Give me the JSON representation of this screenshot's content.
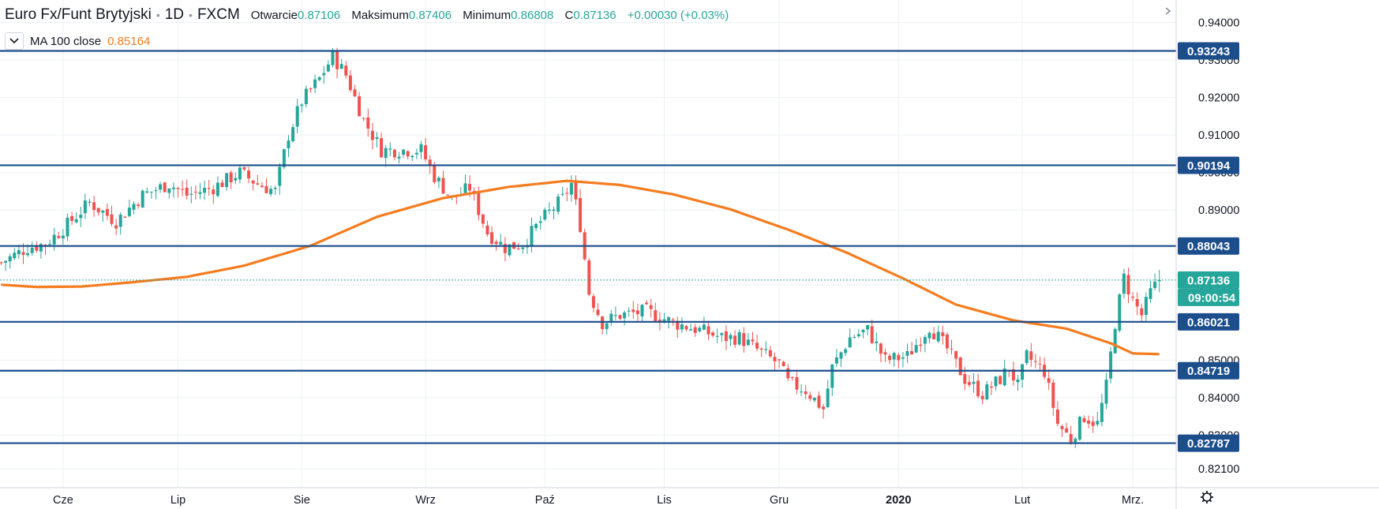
{
  "header": {
    "symbol": "Euro Fx/Funt Brytyjski",
    "interval": "1D",
    "exchange": "FXCM",
    "open_label": "Otwarcie",
    "open_value": "0.87106",
    "high_label": "Maksimum",
    "high_value": "0.87406",
    "low_label": "Minimum",
    "low_value": "0.86808",
    "close_label": "C",
    "close_value": "0.87136",
    "change": "+0.00030 (+0.03%)"
  },
  "indicator": {
    "label": "MA 100 close",
    "value": "0.85164"
  },
  "colors": {
    "up": "#26a69a",
    "down": "#ef5350",
    "ma": "#f57c1f",
    "level": "#1c4e8c",
    "grid": "#eef0f3",
    "axis_text": "#131722",
    "price_line": "#26a69a"
  },
  "chart_data": {
    "type": "candlestick",
    "title": "Euro Fx/Funt Brytyjski · 1D · FXCM",
    "y_axis": {
      "min": 0.816,
      "max": 0.946,
      "ticks": [
        "0.94000",
        "0.93000",
        "0.92000",
        "0.91000",
        "0.90000",
        "0.89000",
        "0.88000",
        "0.87000",
        "0.86000",
        "0.85000",
        "0.84000",
        "0.83000",
        "0.82100"
      ]
    },
    "x_axis": {
      "labels": [
        {
          "label": "Cze",
          "bar": 14
        },
        {
          "label": "Lip",
          "bar": 40
        },
        {
          "label": "Sie",
          "bar": 68
        },
        {
          "label": "Wrz",
          "bar": 96
        },
        {
          "label": "Paź",
          "bar": 123
        },
        {
          "label": "Lis",
          "bar": 150
        },
        {
          "label": "Gru",
          "bar": 176
        },
        {
          "label": "2020",
          "bar": 203
        },
        {
          "label": "Lut",
          "bar": 231
        },
        {
          "label": "Mrz.",
          "bar": 256
        }
      ]
    },
    "horizontal_levels": [
      "0.93243",
      "0.90194",
      "0.88043",
      "0.86021",
      "0.84719",
      "0.82787"
    ],
    "last_price": {
      "price": "0.87136",
      "countdown": "09:00:54"
    },
    "ma_anchors": [
      [
        0,
        0.8701
      ],
      [
        8,
        0.8695
      ],
      [
        18,
        0.8696
      ],
      [
        30,
        0.8708
      ],
      [
        42,
        0.8722
      ],
      [
        55,
        0.8752
      ],
      [
        70,
        0.8805
      ],
      [
        85,
        0.8882
      ],
      [
        100,
        0.8932
      ],
      [
        115,
        0.8962
      ],
      [
        128,
        0.8978
      ],
      [
        140,
        0.8967
      ],
      [
        152,
        0.8942
      ],
      [
        165,
        0.8902
      ],
      [
        178,
        0.8848
      ],
      [
        191,
        0.8788
      ],
      [
        204,
        0.8718
      ],
      [
        216,
        0.8648
      ],
      [
        229,
        0.8606
      ],
      [
        241,
        0.8584
      ],
      [
        251,
        0.8545
      ],
      [
        256,
        0.8518
      ],
      [
        262,
        0.8516
      ]
    ],
    "close_anchors": [
      [
        0,
        0.876
      ],
      [
        6,
        0.88
      ],
      [
        10,
        0.881
      ],
      [
        14,
        0.885
      ],
      [
        20,
        0.892
      ],
      [
        26,
        0.887
      ],
      [
        32,
        0.894
      ],
      [
        38,
        0.897
      ],
      [
        42,
        0.894
      ],
      [
        48,
        0.896
      ],
      [
        54,
        0.9
      ],
      [
        58,
        0.897
      ],
      [
        62,
        0.895
      ],
      [
        65,
        0.91
      ],
      [
        68,
        0.919
      ],
      [
        72,
        0.925
      ],
      [
        75,
        0.931
      ],
      [
        78,
        0.926
      ],
      [
        82,
        0.914
      ],
      [
        86,
        0.906
      ],
      [
        90,
        0.906
      ],
      [
        95,
        0.906
      ],
      [
        98,
        0.899
      ],
      [
        102,
        0.893
      ],
      [
        106,
        0.896
      ],
      [
        110,
        0.884
      ],
      [
        114,
        0.88
      ],
      [
        118,
        0.881
      ],
      [
        122,
        0.887
      ],
      [
        127,
        0.893
      ],
      [
        129,
        0.897
      ],
      [
        131,
        0.886
      ],
      [
        133,
        0.868
      ],
      [
        136,
        0.86
      ],
      [
        140,
        0.862
      ],
      [
        146,
        0.863
      ],
      [
        152,
        0.86
      ],
      [
        158,
        0.858
      ],
      [
        163,
        0.856
      ],
      [
        167,
        0.856
      ],
      [
        172,
        0.852
      ],
      [
        176,
        0.849
      ],
      [
        178,
        0.844
      ],
      [
        182,
        0.842
      ],
      [
        186,
        0.837
      ],
      [
        188,
        0.848
      ],
      [
        192,
        0.856
      ],
      [
        196,
        0.858
      ],
      [
        200,
        0.85
      ],
      [
        205,
        0.851
      ],
      [
        210,
        0.859
      ],
      [
        214,
        0.853
      ],
      [
        218,
        0.845
      ],
      [
        222,
        0.841
      ],
      [
        226,
        0.845
      ],
      [
        228,
        0.848
      ],
      [
        230,
        0.843
      ],
      [
        232,
        0.851
      ],
      [
        236,
        0.847
      ],
      [
        239,
        0.833
      ],
      [
        242,
        0.829
      ],
      [
        245,
        0.835
      ],
      [
        248,
        0.833
      ],
      [
        250,
        0.843
      ],
      [
        252,
        0.86
      ],
      [
        254,
        0.872
      ],
      [
        256,
        0.866
      ],
      [
        258,
        0.862
      ],
      [
        260,
        0.868
      ],
      [
        262,
        0.8714
      ]
    ]
  }
}
